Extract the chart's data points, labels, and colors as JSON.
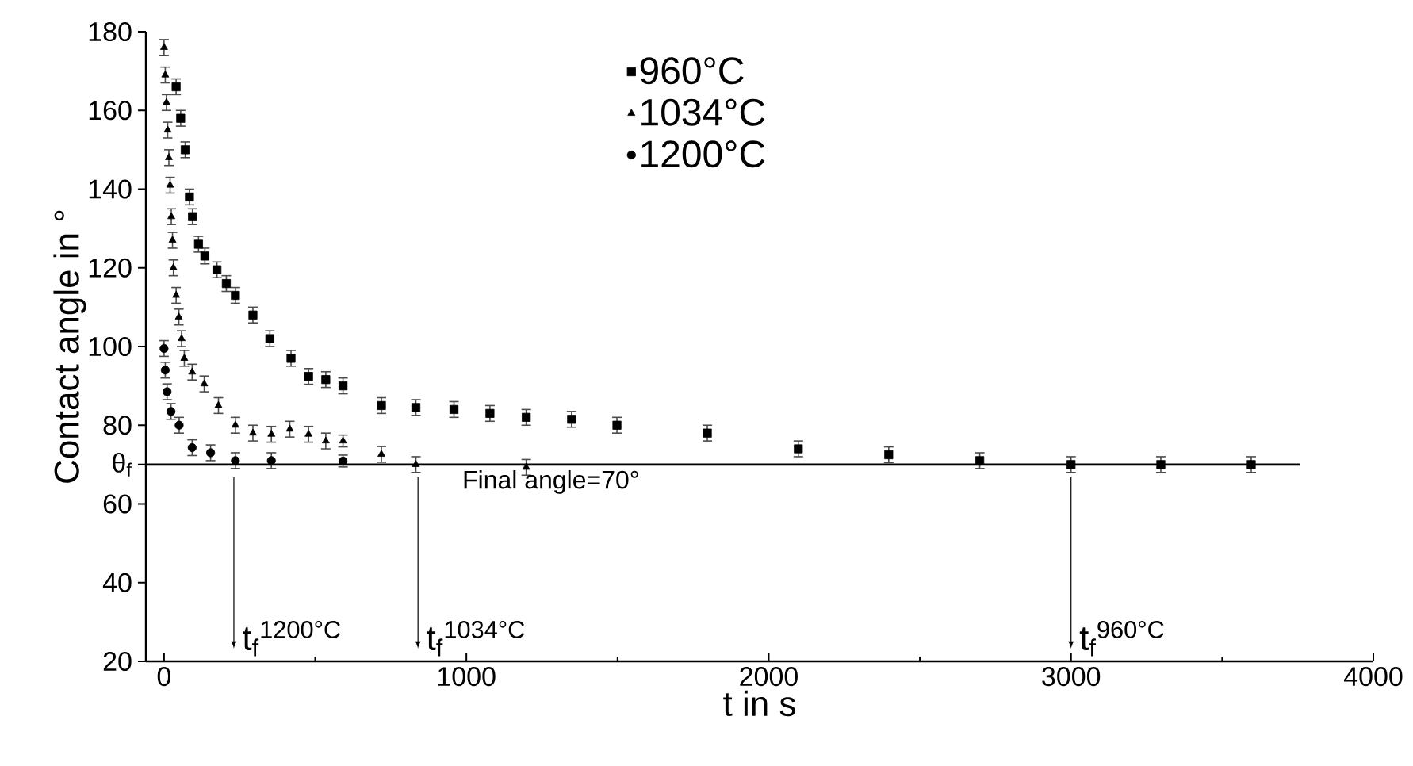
{
  "chart_data": {
    "type": "scatter",
    "xlabel": "t in s",
    "ylabel": "Contact angle in °",
    "xlim": [
      -60,
      4000
    ],
    "ylim": [
      20,
      180
    ],
    "xticks": [
      0,
      1000,
      2000,
      3000,
      4000
    ],
    "yticks": [
      20,
      40,
      60,
      {
        "value": 70,
        "label": "θ$_{f}$"
      },
      80,
      100,
      120,
      140,
      160,
      180
    ],
    "legend": "top",
    "grid": false,
    "series": [
      {
        "name": "960°C",
        "color": "#000000",
        "marker": "square",
        "x": [
          40,
          55,
          70,
          84,
          94,
          114,
          135,
          175,
          206,
          236,
          294,
          350,
          420,
          478,
          535,
          592,
          719,
          833,
          959,
          1078,
          1198,
          1348,
          1498,
          1797,
          2098,
          2397,
          2698,
          3000,
          3297,
          3596
        ],
        "values": [
          166,
          158,
          150,
          138,
          133,
          126,
          123,
          119.5,
          116,
          113,
          108,
          102,
          97,
          92.4,
          91.6,
          90,
          85,
          84.5,
          84,
          83,
          82,
          81.5,
          80,
          78,
          74,
          72.5,
          71,
          70,
          70,
          70
        ],
        "errors": [
          2,
          2,
          2,
          2,
          2,
          2,
          2,
          2,
          2,
          2,
          2,
          2,
          2,
          2,
          2,
          2,
          2,
          2,
          2,
          2,
          2,
          2,
          2,
          2,
          2,
          2,
          2,
          2,
          2,
          2
        ]
      },
      {
        "name": "1034°C",
        "color": "#000000",
        "marker": "triangle",
        "x": [
          0,
          4,
          8,
          12,
          16,
          20,
          24,
          28,
          31,
          40,
          49,
          58,
          67,
          93,
          133,
          180,
          236,
          294,
          355,
          416,
          478,
          535,
          592,
          719,
          833,
          1198
        ],
        "values": [
          176,
          169,
          162,
          155,
          148,
          141,
          133,
          127,
          120,
          113,
          107.5,
          102,
          97,
          93.5,
          90.5,
          85,
          80,
          78,
          77.7,
          79,
          77.7,
          76,
          76,
          72.6,
          70,
          69.3
        ],
        "errors": [
          2,
          2,
          2,
          2,
          2,
          2,
          2,
          2,
          2,
          2,
          2,
          2,
          2,
          2,
          2,
          2,
          2,
          2,
          2,
          2,
          2,
          2,
          1.5,
          2,
          2,
          2
        ]
      },
      {
        "name": "1200°C",
        "color": "#000000",
        "marker": "circle",
        "x": [
          0,
          4,
          10,
          23,
          50,
          93,
          154,
          236,
          355,
          592
        ],
        "values": [
          99.5,
          94,
          88.5,
          83.5,
          80,
          74.3,
          73,
          71,
          71,
          70.9
        ],
        "errors": [
          2,
          2,
          2,
          2,
          2,
          2,
          2,
          2,
          2,
          1.5
        ]
      }
    ],
    "ref_lines": [
      {
        "axis": "y",
        "value": 70,
        "label": "Final angle=70°"
      },
      {
        "axis": "x",
        "value": 231,
        "label": "t$_{f}$$^{1200°C}$"
      },
      {
        "axis": "x",
        "value": 840,
        "label": "t$_{f}$$^{1034°C}$"
      },
      {
        "axis": "x",
        "value": 3000,
        "label": "t$_{f}$$^{960°C}$"
      }
    ]
  }
}
